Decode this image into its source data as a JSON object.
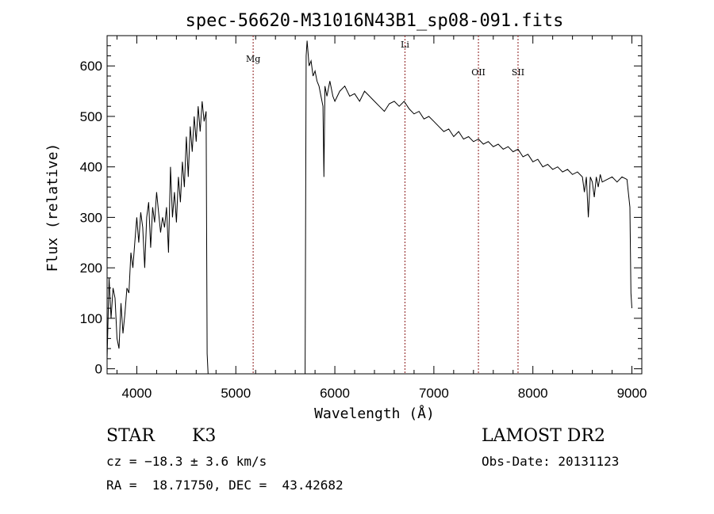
{
  "chart_data": {
    "type": "line",
    "title": "spec-56620-M31016N43B1_sp08-091.fits",
    "xlabel": "Wavelength (Å)",
    "ylabel": "Flux (relative)",
    "xlim": [
      3700,
      9100
    ],
    "ylim": [
      -10,
      660
    ],
    "xticks": [
      "4000",
      "5000",
      "6000",
      "7000",
      "8000",
      "9000"
    ],
    "yticks": [
      "0",
      "100",
      "200",
      "300",
      "400",
      "500",
      "600"
    ],
    "grid": false,
    "series": [
      {
        "x": [
          3700,
          3720,
          3740,
          3760,
          3780,
          3800,
          3820,
          3840,
          3860,
          3880,
          3900,
          3920,
          3940,
          3960,
          3980,
          4000,
          4020,
          4040,
          4060,
          4080,
          4100,
          4120,
          4140,
          4160,
          4180,
          4200,
          4220,
          4240,
          4260,
          4280,
          4300,
          4320,
          4340,
          4360,
          4380,
          4400,
          4420,
          4440,
          4460,
          4480,
          4500,
          4520,
          4540,
          4560,
          4580,
          4600,
          4620,
          4640,
          4660,
          4680,
          4700,
          4710,
          4720,
          4730,
          5700,
          5710,
          5720,
          5740,
          5760,
          5780,
          5800,
          5820,
          5840,
          5860,
          5880,
          5890,
          5900,
          5920,
          5950,
          5980,
          6000,
          6050,
          6100,
          6150,
          6200,
          6250,
          6300,
          6350,
          6400,
          6450,
          6500,
          6550,
          6600,
          6650,
          6700,
          6750,
          6800,
          6850,
          6900,
          6950,
          7000,
          7050,
          7100,
          7150,
          7200,
          7250,
          7300,
          7350,
          7400,
          7450,
          7500,
          7550,
          7600,
          7650,
          7700,
          7750,
          7800,
          7850,
          7900,
          7950,
          8000,
          8050,
          8100,
          8150,
          8200,
          8250,
          8300,
          8350,
          8400,
          8450,
          8500,
          8520,
          8540,
          8560,
          8580,
          8600,
          8620,
          8640,
          8660,
          8680,
          8700,
          8750,
          8800,
          8850,
          8900,
          8950,
          8980,
          8990,
          9000
        ],
        "y": [
          20,
          180,
          100,
          160,
          140,
          60,
          40,
          130,
          70,
          110,
          160,
          150,
          230,
          200,
          250,
          300,
          250,
          310,
          280,
          200,
          300,
          330,
          240,
          320,
          290,
          350,
          310,
          270,
          300,
          280,
          320,
          230,
          400,
          300,
          350,
          290,
          380,
          330,
          410,
          360,
          460,
          380,
          480,
          430,
          500,
          450,
          520,
          470,
          530,
          490,
          510,
          30,
          -10,
          -10,
          -10,
          620,
          650,
          600,
          610,
          580,
          590,
          570,
          560,
          540,
          520,
          380,
          560,
          540,
          570,
          540,
          530,
          550,
          560,
          540,
          545,
          530,
          550,
          540,
          530,
          520,
          510,
          525,
          530,
          520,
          530,
          515,
          505,
          510,
          495,
          500,
          490,
          480,
          470,
          475,
          460,
          470,
          455,
          460,
          450,
          455,
          445,
          450,
          440,
          445,
          435,
          440,
          430,
          435,
          420,
          425,
          410,
          415,
          400,
          405,
          395,
          400,
          390,
          395,
          385,
          390,
          380,
          350,
          380,
          300,
          380,
          370,
          340,
          380,
          360,
          385,
          370,
          375,
          380,
          370,
          380,
          375,
          320,
          150,
          120
        ]
      }
    ],
    "lines": [
      {
        "label": "Mg",
        "x": 5175
      },
      {
        "label": "Li",
        "x": 6708
      },
      {
        "label": "OII",
        "x": 7450
      },
      {
        "label": "SII",
        "x": 7850
      }
    ]
  },
  "info": {
    "class_label": "STAR",
    "subclass": "K3",
    "survey": "LAMOST DR2",
    "cz": "cz = −18.3 ± 3.6 km/s",
    "obs_date": "Obs-Date: 20131123",
    "coords": "RA =  18.71750, DEC =  43.42682"
  },
  "colors": {
    "line_marker": "#8b1a1a",
    "spectrum": "#000000"
  }
}
